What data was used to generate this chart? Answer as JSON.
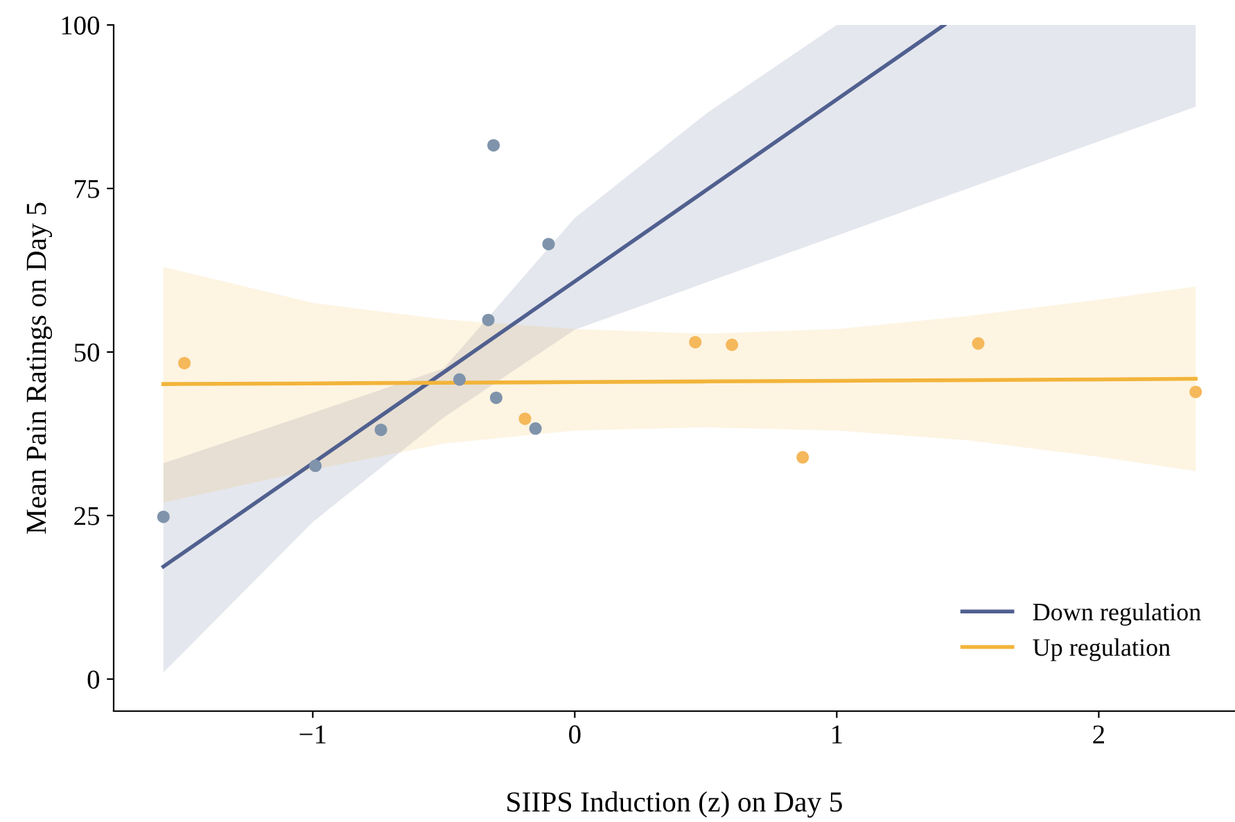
{
  "chart_data": {
    "type": "line",
    "xlabel": "SIIPS Induction (z) on Day 5",
    "ylabel": "Mean Pain Ratings on Day 5",
    "xlim": [
      -1.76,
      2.52
    ],
    "ylim": [
      -4.9,
      100
    ],
    "xticks": [
      {
        "value": -1,
        "label": "−1"
      },
      0,
      1,
      2
    ],
    "yticks": [
      0,
      25,
      50,
      75,
      100
    ],
    "grid": false,
    "legend": "bottom right",
    "series": [
      {
        "type": "scatter",
        "marker": "circle",
        "color": "#7f93ab",
        "x": [
          -1.57,
          -0.99,
          -0.74,
          -0.44,
          -0.33,
          -0.31,
          -0.3,
          -0.15,
          -0.1
        ],
        "values": [
          24.8,
          32.6,
          38.1,
          45.8,
          54.9,
          81.6,
          43.0,
          38.3,
          66.5
        ]
      },
      {
        "type": "scatter",
        "marker": "circle",
        "color": "#f5b85a",
        "x": [
          -1.49,
          -0.19,
          0.46,
          0.6,
          0.87,
          1.54,
          2.37
        ],
        "values": [
          48.3,
          39.8,
          51.5,
          51.1,
          33.9,
          51.3,
          43.9
        ]
      },
      {
        "name": "Down regulation",
        "color": "#50608f",
        "x": [
          -1.57,
          -1,
          -0.5,
          0,
          0.5,
          1,
          1.41,
          2,
          2.37
        ],
        "values": [
          17.2,
          33.0,
          46.9,
          60.8,
          74.7,
          88.6,
          100,
          null,
          null
        ],
        "lower": [
          1,
          24,
          40,
          53.4,
          60.6,
          67.8,
          73.7,
          82.2,
          87.5
        ],
        "upper": [
          33,
          40.7,
          47.5,
          70.5,
          86.4,
          100,
          100,
          100,
          100
        ]
      },
      {
        "name": "Up regulation",
        "color": "#f2b43a",
        "x": [
          -1.57,
          -1,
          -0.5,
          0,
          0.5,
          1,
          1.5,
          2,
          2.37
        ],
        "values": [
          45.1,
          45.2,
          45.3,
          45.4,
          45.5,
          45.6,
          45.7,
          45.8,
          45.9
        ],
        "lower": [
          27,
          32,
          36,
          38,
          38.5,
          38,
          36.5,
          34,
          31.8
        ],
        "upper": [
          63,
          57.5,
          55,
          53.5,
          52.8,
          53.5,
          55.5,
          58,
          60
        ]
      }
    ]
  }
}
